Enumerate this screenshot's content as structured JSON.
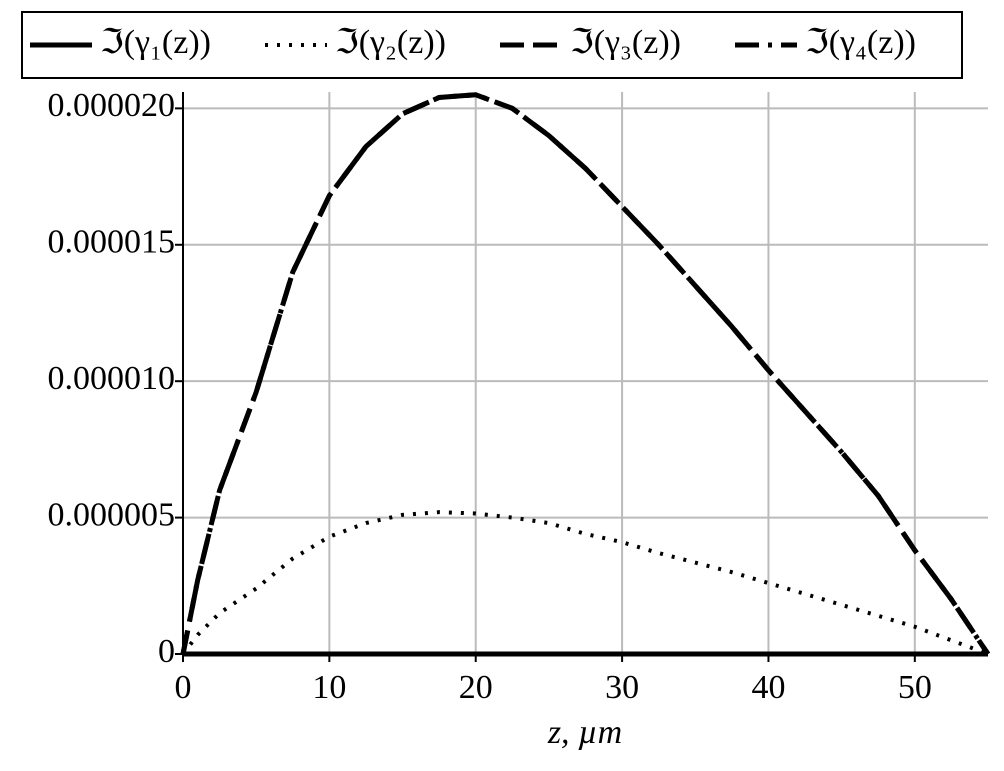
{
  "chart_data": {
    "type": "line",
    "x_label": "z, µm",
    "x": [
      0,
      1,
      2.5,
      5,
      7.5,
      10,
      12.5,
      15,
      17.5,
      20,
      22.5,
      25,
      27.5,
      30,
      32.5,
      35,
      37.5,
      40,
      42.5,
      45,
      47.5,
      50,
      52.5,
      54,
      55
    ],
    "series": [
      {
        "name": "ℑ(γ₁(z))",
        "color": "#000000",
        "dash": "solid",
        "values": [
          0,
          0,
          0,
          0,
          0,
          0,
          0,
          0,
          0,
          0,
          0,
          0,
          0,
          0,
          0,
          0,
          0,
          0,
          0,
          0,
          0,
          0,
          0,
          0,
          0
        ]
      },
      {
        "name": "ℑ(γ₂(z))",
        "color": "#000000",
        "dash": "dot",
        "values": [
          0,
          7e-07,
          1.5e-06,
          2.4e-06,
          3.5e-06,
          4.3e-06,
          4.8e-06,
          5.1e-06,
          5.2e-06,
          5.15e-06,
          5e-06,
          4.8e-06,
          4.4e-06,
          4.1e-06,
          3.7e-06,
          3.35e-06,
          3e-06,
          2.6e-06,
          2.2e-06,
          1.8e-06,
          1.4e-06,
          1e-06,
          5e-07,
          2e-07,
          0
        ]
      },
      {
        "name": "ℑ(γ₃(z))",
        "color": "#000000",
        "dash": "dash",
        "values": [
          0,
          2.7e-06,
          6e-06,
          9.6e-06,
          1.4e-05,
          1.68e-05,
          1.86e-05,
          1.98e-05,
          2.04e-05,
          2.05e-05,
          2e-05,
          1.9e-05,
          1.78e-05,
          1.64e-05,
          1.5e-05,
          1.35e-05,
          1.2e-05,
          1.04e-05,
          8.9e-06,
          7.4e-06,
          5.8e-06,
          3.8e-06,
          2e-06,
          8e-07,
          0
        ]
      },
      {
        "name": "ℑ(γ₄(z))",
        "color": "#000000",
        "dash": "dashdot",
        "values": [
          0,
          2.7e-06,
          6e-06,
          9.6e-06,
          1.4e-05,
          1.68e-05,
          1.86e-05,
          1.98e-05,
          2.04e-05,
          2.05e-05,
          2e-05,
          1.9e-05,
          1.78e-05,
          1.64e-05,
          1.5e-05,
          1.35e-05,
          1.2e-05,
          1.04e-05,
          8.9e-06,
          7.4e-06,
          5.8e-06,
          3.8e-06,
          2e-06,
          8e-07,
          0
        ]
      }
    ],
    "xlim": [
      0,
      55
    ],
    "xticks": [
      0,
      10,
      20,
      30,
      40,
      50
    ],
    "ylim": [
      0,
      2.06e-05
    ],
    "yticks": [
      0,
      {
        "value": 5e-06,
        "label": "0.000005"
      },
      {
        "value": 1e-05,
        "label": "0.000010"
      },
      {
        "value": 1.5e-05,
        "label": "0.000015"
      },
      {
        "value": 2e-05,
        "label": "0.000020"
      }
    ],
    "grid": true,
    "legend": "top"
  }
}
